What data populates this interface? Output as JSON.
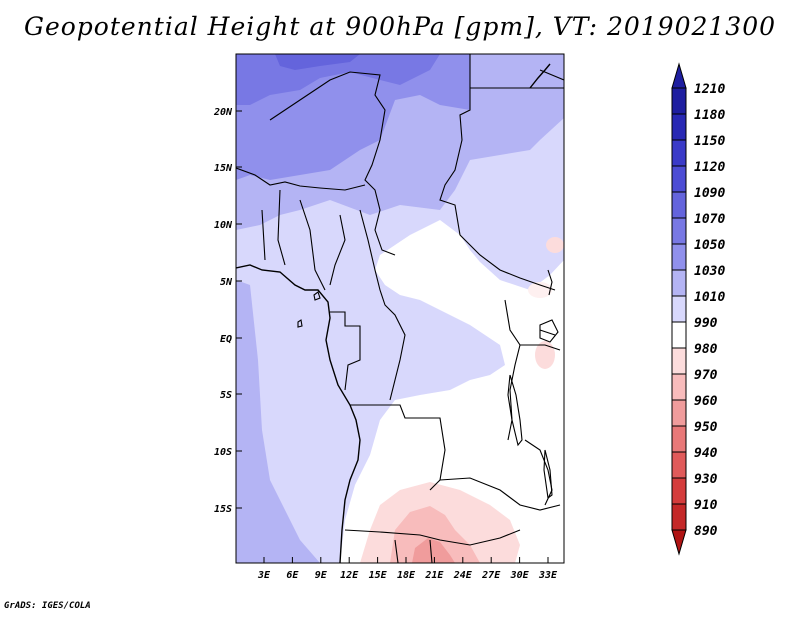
{
  "title": "Geopotential Height at 900hPa [gpm], VT: 2019021300",
  "credit": "GrADS: IGES/COLA",
  "map": {
    "lat_labels": [
      "20N",
      "15N",
      "10N",
      "5N",
      "EQ",
      "5S",
      "10S",
      "15S"
    ],
    "lon_labels": [
      "3E",
      "6E",
      "9E",
      "12E",
      "15E",
      "18E",
      "21E",
      "24E",
      "27E",
      "30E",
      "33E"
    ]
  },
  "colorbar": {
    "levels": [
      "1210",
      "1180",
      "1150",
      "1120",
      "1090",
      "1070",
      "1050",
      "1030",
      "1010",
      "990",
      "980",
      "970",
      "960",
      "950",
      "940",
      "930",
      "910",
      "890"
    ],
    "colors": [
      "#1e1ea0",
      "#2828b4",
      "#3a3ac8",
      "#4c4cd4",
      "#6464dc",
      "#7878e4",
      "#9090ec",
      "#b4b4f4",
      "#d8d8fc",
      "#ffffff",
      "#fcdcdc",
      "#f8bcbc",
      "#f09c9c",
      "#e87878",
      "#e05a5a",
      "#d43c3c",
      "#c42828",
      "#b01414"
    ]
  }
}
